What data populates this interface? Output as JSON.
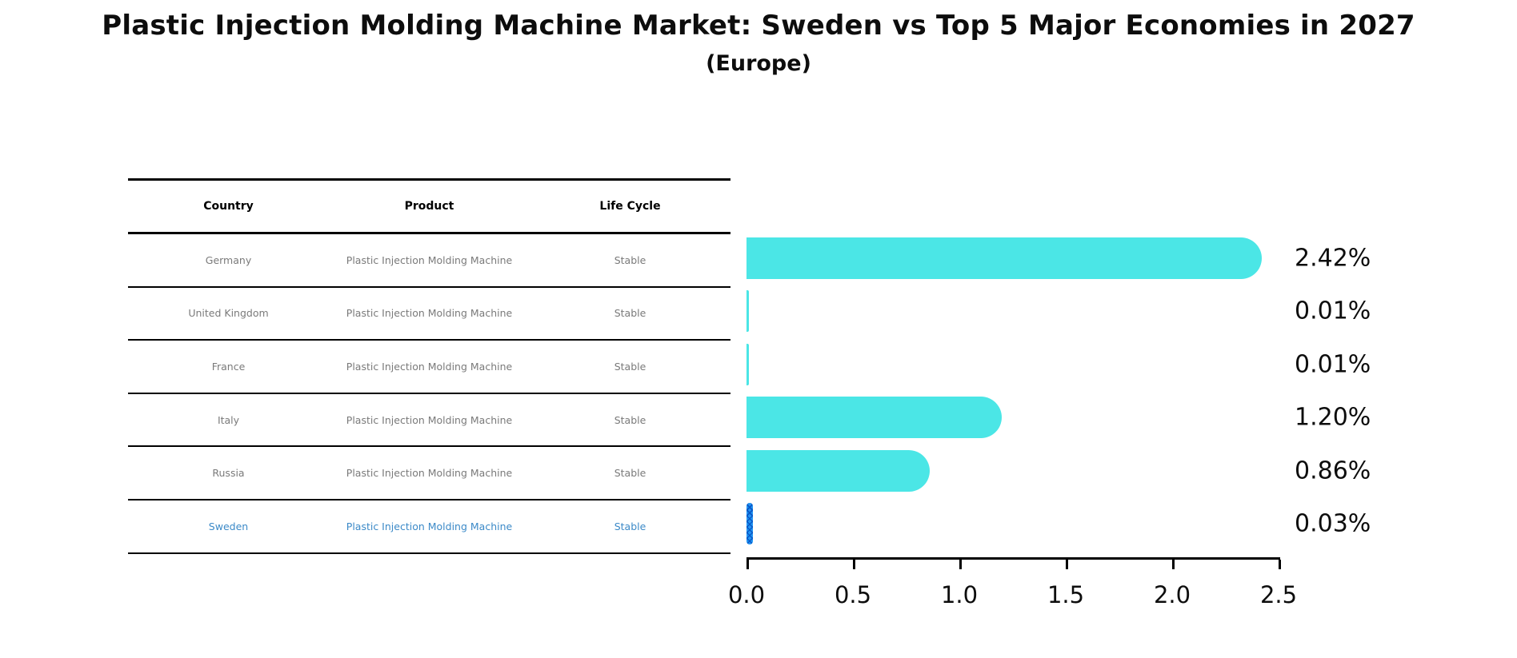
{
  "title": "Plastic Injection Molding Machine Market: Sweden vs Top 5 Major Economies in 2027",
  "subtitle": "(Europe)",
  "table": {
    "headers": [
      "Country",
      "Product",
      "Life Cycle"
    ],
    "rows": [
      {
        "country": "Germany",
        "product": "Plastic Injection Molding Machine",
        "life_cycle": "Stable",
        "highlight": false
      },
      {
        "country": "United Kingdom",
        "product": "Plastic Injection Molding Machine",
        "life_cycle": "Stable",
        "highlight": false
      },
      {
        "country": "France",
        "product": "Plastic Injection Molding Machine",
        "life_cycle": "Stable",
        "highlight": false
      },
      {
        "country": "Italy",
        "product": "Plastic Injection Molding Machine",
        "life_cycle": "Stable",
        "highlight": false
      },
      {
        "country": "Russia",
        "product": "Plastic Injection Molding Machine",
        "life_cycle": "Stable",
        "highlight": false
      },
      {
        "country": "Sweden",
        "product": "Plastic Injection Molding Machine",
        "life_cycle": "Stable",
        "highlight": true
      }
    ]
  },
  "chart_data": {
    "type": "bar",
    "orientation": "horizontal",
    "title": "Plastic Injection Molding Machine Market: Sweden vs Top 5 Major Economies in 2027",
    "subtitle": "(Europe)",
    "categories": [
      "Germany",
      "United Kingdom",
      "France",
      "Italy",
      "Russia",
      "Sweden"
    ],
    "values": [
      2.42,
      0.01,
      0.01,
      1.2,
      0.86,
      0.03
    ],
    "value_labels": [
      "2.42%",
      "0.01%",
      "0.01%",
      "1.20%",
      "0.86%",
      "0.03%"
    ],
    "xlabel": "",
    "ylabel": "",
    "xlim": [
      0.0,
      2.5
    ],
    "xticks": [
      "0.0",
      "0.5",
      "1.0",
      "1.5",
      "2.0",
      "2.5"
    ],
    "grid": false,
    "legend": false,
    "bar_color": "#4be6e6",
    "highlight_color": "#2196f3",
    "highlight_index": 5
  },
  "colors": {
    "bar_cyan": "#4be6e6",
    "sweden_blue": "#2196f3",
    "sweden_hatch": "#0a58c8",
    "table_text_gray": "#7a7a7a",
    "sweden_text_blue": "#3c8ac8",
    "line_black": "#000000"
  }
}
